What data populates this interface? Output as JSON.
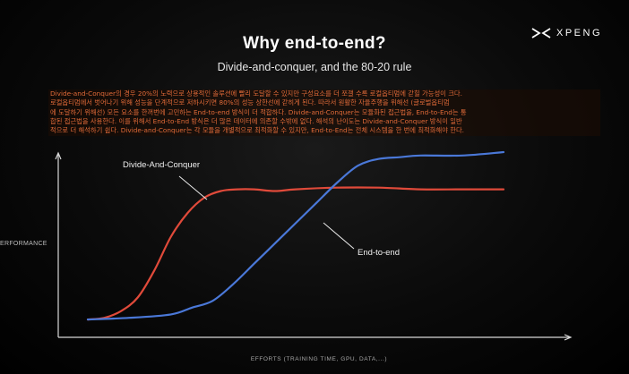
{
  "slide": {
    "title": "Why end-to-end?",
    "subtitle": "Divide-and-conquer, and the 80-20 rule",
    "logo_text": "XPENG",
    "logo_icon": "x-chevrons-icon",
    "caption_lines": [
      "Divide-and-Conquer의 경우 20%의 노력으로 상용적인 솔루션에 빨리 도달할 수 있지만 구성요소를 더 쪼갤 수록 로컬옵티멈에 갇힐 가능성이 크다.",
      "로컬옵티멈에서 벗어나기 위해 성능을 단계적으로 저하시키면 80%의 성능 상한선에 갇히게 된다. 따라서 원활한 자율주행을 위해선 (글로벌옵티멈",
      "에 도달하기 위해선) 모든 요소를 한꺼번에 고민하는 End-to-end 방식이 더 적합하다. Divide-and-Conquer는 모듈화된 접근법을, End-to-End는 통",
      "합된 접근법을 사용한다. 이를 위해서 End-to-End 방식은 더 많은 데이터에 의존할 수밖에 없다. 해석의 난이도는 Divide-and-Conquer 방식이 일반",
      "적으로 더 해석하기 쉽다. Divide-and-Conquer는 각 모듈을 개별적으로 최적화할 수 있지만, End-to-End는 전체 시스템을 한 번에 최적화해야 한다."
    ],
    "colors": {
      "background": "#000000",
      "caption": "#e06a38"
    }
  },
  "chart_data": {
    "type": "line",
    "xlabel": "EFFORTS (TRAINING TIME, GPU, DATA,...)",
    "ylabel": "ERFORMANCE",
    "xlim": [
      0,
      100
    ],
    "ylim": [
      0,
      100
    ],
    "grid": false,
    "legend": "none",
    "annotations": [
      {
        "text": "Divide-And-Conquer",
        "series": 0
      },
      {
        "text": "End-to-end",
        "series": 1
      }
    ],
    "series": [
      {
        "name": "Divide-And-Conquer",
        "color": "#e04a3a",
        "x": [
          0,
          4,
          8,
          12,
          16,
          20,
          24,
          28,
          32,
          36,
          40,
          45,
          50,
          60,
          70,
          80,
          90,
          100
        ],
        "y": [
          1,
          2,
          6,
          14,
          30,
          50,
          64,
          73,
          77,
          78,
          78,
          77,
          78,
          79,
          79,
          78,
          78,
          78
        ]
      },
      {
        "name": "End-to-end",
        "color": "#4a78d8",
        "x": [
          0,
          10,
          20,
          25,
          30,
          35,
          40,
          45,
          50,
          55,
          60,
          65,
          70,
          75,
          80,
          90,
          100
        ],
        "y": [
          1,
          2,
          4,
          8,
          12,
          22,
          34,
          46,
          58,
          70,
          82,
          92,
          96,
          97,
          98,
          98,
          100
        ]
      }
    ]
  }
}
